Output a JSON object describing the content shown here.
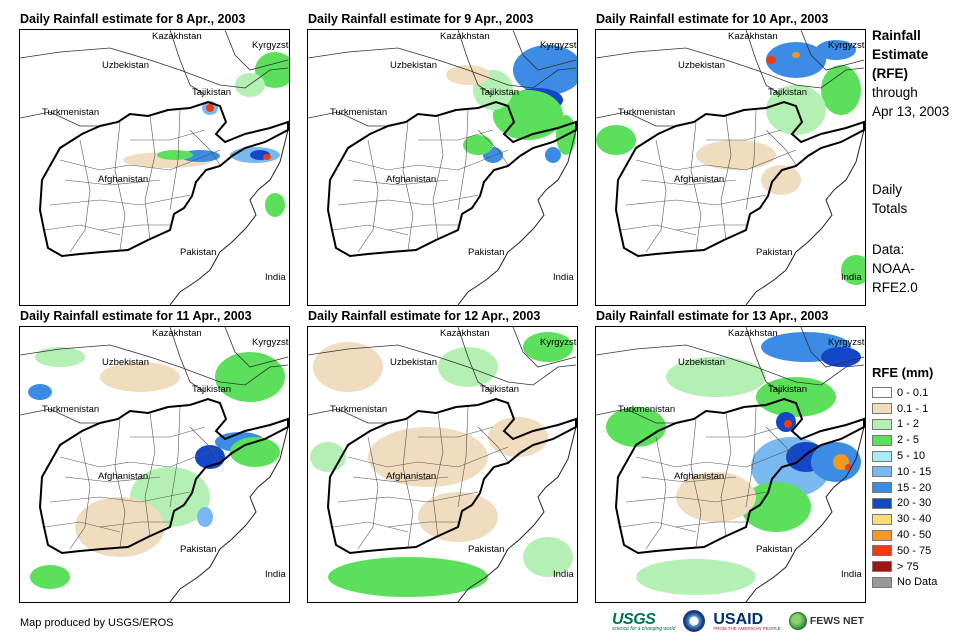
{
  "panels": [
    {
      "title": "Daily Rainfall estimate for 8 Apr., 2003"
    },
    {
      "title": "Daily Rainfall estimate for 9 Apr., 2003"
    },
    {
      "title": "Daily Rainfall estimate for 10 Apr., 2003"
    },
    {
      "title": "Daily Rainfall estimate for 11 Apr., 2003"
    },
    {
      "title": "Daily Rainfall estimate for 12 Apr., 2003"
    },
    {
      "title": "Daily Rainfall estimate for 13 Apr., 2003"
    }
  ],
  "map_labels": {
    "kazakhstan": "Kazakhstan",
    "kyrgyzstan": "Kyrgyzstan",
    "uzbekistan": "Uzbekistan",
    "tajikistan": "Tajikistan",
    "turkmenistan": "Turkmenistan",
    "afghanistan": "Afghanistan",
    "pakistan": "Pakistan",
    "india": "India"
  },
  "side": {
    "title_line1": "Rainfall",
    "title_line2": "Estimate",
    "title_line3": "(RFE)",
    "through": "through",
    "date": "Apr 13, 2003",
    "daily": "Daily",
    "totals": "Totals",
    "data_label": "Data:",
    "source1": "NOAA-",
    "source2": "RFE2.0"
  },
  "legend": {
    "title": "RFE (mm)",
    "items": [
      {
        "label": "0 - 0.1",
        "color": "#ffffff"
      },
      {
        "label": "0.1 - 1",
        "color": "#f0dcbe"
      },
      {
        "label": "1 - 2",
        "color": "#b4f0b4"
      },
      {
        "label": "2 - 5",
        "color": "#5ce05c"
      },
      {
        "label": "5 - 10",
        "color": "#a6ecf2"
      },
      {
        "label": "10 - 15",
        "color": "#7ab8f0"
      },
      {
        "label": "15 - 20",
        "color": "#3c8ce6"
      },
      {
        "label": "20 - 30",
        "color": "#1446c8"
      },
      {
        "label": "30 - 40",
        "color": "#fadc78"
      },
      {
        "label": "40 - 50",
        "color": "#f29a1e"
      },
      {
        "label": "50 - 75",
        "color": "#f03c0a"
      },
      {
        "label": "> 75",
        "color": "#a01414"
      },
      {
        "label": "No Data",
        "color": "#999999"
      }
    ]
  },
  "credit": "Map produced by USGS/EROS",
  "logos": {
    "usgs": "USGS",
    "usgs_tagline": "science for a changing world",
    "usaid": "USAID",
    "usaid_tagline": "FROM THE AMERICAN PEOPLE",
    "fews": "FEWS NET"
  },
  "rain_patterns": [
    [
      {
        "level": 1,
        "cx": 148,
        "cy": 130,
        "rx": 45,
        "ry": 8
      },
      {
        "level": 3,
        "cx": 255,
        "cy": 40,
        "rx": 20,
        "ry": 18
      },
      {
        "level": 2,
        "cx": 230,
        "cy": 55,
        "rx": 15,
        "ry": 12
      },
      {
        "level": 5,
        "cx": 190,
        "cy": 78,
        "rx": 8,
        "ry": 7
      },
      {
        "level": 10,
        "cx": 190,
        "cy": 78,
        "rx": 4,
        "ry": 4
      },
      {
        "level": 5,
        "cx": 235,
        "cy": 125,
        "rx": 25,
        "ry": 8
      },
      {
        "level": 7,
        "cx": 240,
        "cy": 125,
        "rx": 10,
        "ry": 5
      },
      {
        "level": 10,
        "cx": 247,
        "cy": 127,
        "rx": 4,
        "ry": 3
      },
      {
        "level": 6,
        "cx": 180,
        "cy": 126,
        "rx": 20,
        "ry": 6
      },
      {
        "level": 3,
        "cx": 155,
        "cy": 125,
        "rx": 18,
        "ry": 5
      },
      {
        "level": 3,
        "cx": 255,
        "cy": 175,
        "rx": 10,
        "ry": 12
      }
    ],
    [
      {
        "level": 6,
        "cx": 240,
        "cy": 40,
        "rx": 35,
        "ry": 25
      },
      {
        "level": 7,
        "cx": 230,
        "cy": 70,
        "rx": 25,
        "ry": 12
      },
      {
        "level": 3,
        "cx": 220,
        "cy": 85,
        "rx": 35,
        "ry": 25
      },
      {
        "level": 2,
        "cx": 185,
        "cy": 60,
        "rx": 20,
        "ry": 20
      },
      {
        "level": 1,
        "cx": 160,
        "cy": 45,
        "rx": 22,
        "ry": 10
      },
      {
        "level": 6,
        "cx": 185,
        "cy": 125,
        "rx": 10,
        "ry": 8
      },
      {
        "level": 3,
        "cx": 170,
        "cy": 115,
        "rx": 15,
        "ry": 10
      },
      {
        "level": 6,
        "cx": 245,
        "cy": 125,
        "rx": 8,
        "ry": 8
      },
      {
        "level": 3,
        "cx": 258,
        "cy": 105,
        "rx": 10,
        "ry": 20
      }
    ],
    [
      {
        "level": 6,
        "cx": 200,
        "cy": 30,
        "rx": 30,
        "ry": 18
      },
      {
        "level": 10,
        "cx": 175,
        "cy": 30,
        "rx": 5,
        "ry": 4
      },
      {
        "level": 9,
        "cx": 200,
        "cy": 25,
        "rx": 4,
        "ry": 3
      },
      {
        "level": 6,
        "cx": 240,
        "cy": 20,
        "rx": 20,
        "ry": 10
      },
      {
        "level": 3,
        "cx": 245,
        "cy": 60,
        "rx": 20,
        "ry": 25
      },
      {
        "level": 2,
        "cx": 200,
        "cy": 80,
        "rx": 30,
        "ry": 25
      },
      {
        "level": 3,
        "cx": 20,
        "cy": 110,
        "rx": 20,
        "ry": 15
      },
      {
        "level": 1,
        "cx": 140,
        "cy": 125,
        "rx": 40,
        "ry": 15
      },
      {
        "level": 1,
        "cx": 185,
        "cy": 150,
        "rx": 20,
        "ry": 15
      },
      {
        "level": 3,
        "cx": 260,
        "cy": 240,
        "rx": 15,
        "ry": 15
      }
    ],
    [
      {
        "level": 2,
        "cx": 40,
        "cy": 30,
        "rx": 25,
        "ry": 10
      },
      {
        "level": 1,
        "cx": 120,
        "cy": 50,
        "rx": 40,
        "ry": 15
      },
      {
        "level": 3,
        "cx": 230,
        "cy": 50,
        "rx": 35,
        "ry": 25
      },
      {
        "level": 6,
        "cx": 20,
        "cy": 65,
        "rx": 12,
        "ry": 8
      },
      {
        "level": 7,
        "cx": 190,
        "cy": 130,
        "rx": 15,
        "ry": 12
      },
      {
        "level": 6,
        "cx": 220,
        "cy": 115,
        "rx": 25,
        "ry": 10
      },
      {
        "level": 3,
        "cx": 235,
        "cy": 125,
        "rx": 25,
        "ry": 15
      },
      {
        "level": 2,
        "cx": 150,
        "cy": 170,
        "rx": 40,
        "ry": 30
      },
      {
        "level": 1,
        "cx": 100,
        "cy": 200,
        "rx": 45,
        "ry": 30
      },
      {
        "level": 3,
        "cx": 30,
        "cy": 250,
        "rx": 20,
        "ry": 12
      },
      {
        "level": 5,
        "cx": 185,
        "cy": 190,
        "rx": 8,
        "ry": 10
      }
    ],
    [
      {
        "level": 1,
        "cx": 40,
        "cy": 40,
        "rx": 35,
        "ry": 25
      },
      {
        "level": 2,
        "cx": 160,
        "cy": 40,
        "rx": 30,
        "ry": 20
      },
      {
        "level": 3,
        "cx": 240,
        "cy": 20,
        "rx": 25,
        "ry": 15
      },
      {
        "level": 1,
        "cx": 120,
        "cy": 130,
        "rx": 60,
        "ry": 30
      },
      {
        "level": 1,
        "cx": 210,
        "cy": 110,
        "rx": 30,
        "ry": 20
      },
      {
        "level": 2,
        "cx": 20,
        "cy": 130,
        "rx": 18,
        "ry": 15
      },
      {
        "level": 1,
        "cx": 150,
        "cy": 190,
        "rx": 40,
        "ry": 25
      },
      {
        "level": 3,
        "cx": 100,
        "cy": 250,
        "rx": 80,
        "ry": 20
      },
      {
        "level": 2,
        "cx": 240,
        "cy": 230,
        "rx": 25,
        "ry": 20
      }
    ],
    [
      {
        "level": 6,
        "cx": 210,
        "cy": 20,
        "rx": 45,
        "ry": 15
      },
      {
        "level": 7,
        "cx": 245,
        "cy": 30,
        "rx": 20,
        "ry": 10
      },
      {
        "level": 2,
        "cx": 120,
        "cy": 50,
        "rx": 50,
        "ry": 20
      },
      {
        "level": 3,
        "cx": 200,
        "cy": 70,
        "rx": 40,
        "ry": 20
      },
      {
        "level": 7,
        "cx": 190,
        "cy": 95,
        "rx": 10,
        "ry": 10
      },
      {
        "level": 10,
        "cx": 192,
        "cy": 97,
        "rx": 4,
        "ry": 4
      },
      {
        "level": 3,
        "cx": 40,
        "cy": 100,
        "rx": 30,
        "ry": 20
      },
      {
        "level": 5,
        "cx": 195,
        "cy": 140,
        "rx": 40,
        "ry": 30
      },
      {
        "level": 7,
        "cx": 210,
        "cy": 130,
        "rx": 20,
        "ry": 15
      },
      {
        "level": 6,
        "cx": 240,
        "cy": 135,
        "rx": 25,
        "ry": 20
      },
      {
        "level": 9,
        "cx": 245,
        "cy": 135,
        "rx": 8,
        "ry": 8
      },
      {
        "level": 10,
        "cx": 252,
        "cy": 140,
        "rx": 3,
        "ry": 3
      },
      {
        "level": 3,
        "cx": 180,
        "cy": 180,
        "rx": 35,
        "ry": 25
      },
      {
        "level": 1,
        "cx": 120,
        "cy": 170,
        "rx": 40,
        "ry": 25
      },
      {
        "level": 2,
        "cx": 100,
        "cy": 250,
        "rx": 60,
        "ry": 18
      }
    ]
  ]
}
